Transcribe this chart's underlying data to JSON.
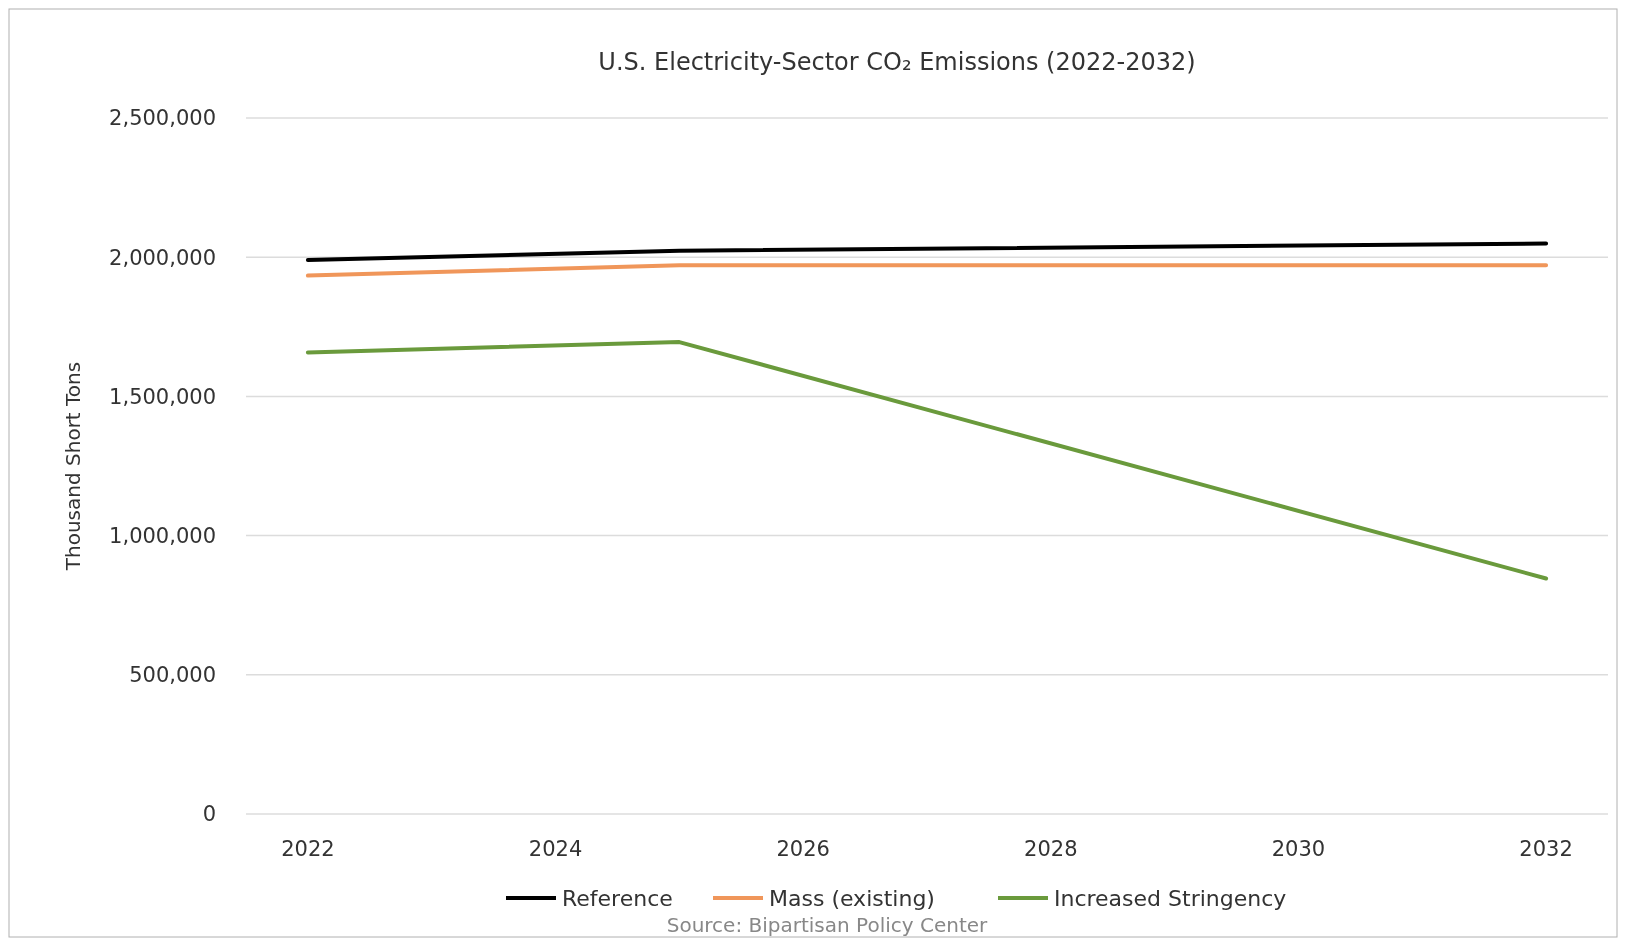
{
  "chart_data": {
    "type": "line",
    "title": "U.S. Electricity-Sector CO₂ Emissions (2022-2032)",
    "ylabel": "Thousand Short Tons",
    "x": [
      2022,
      2025,
      2032
    ],
    "series": [
      {
        "name": "Reference",
        "color": "#000000",
        "values": [
          1990000,
          2023000,
          2049000
        ]
      },
      {
        "name": "Mass (existing)",
        "color": "#f0965a",
        "values": [
          1934000,
          1971000,
          1971000
        ]
      },
      {
        "name": "Increased Stringency",
        "color": "#6a9a3c",
        "values": [
          1658000,
          1695000,
          846000
        ]
      }
    ],
    "xlim": [
      2021.5,
      2032.5
    ],
    "xticks": [
      2022,
      2024,
      2026,
      2028,
      2030,
      2032
    ],
    "ylim": [
      0,
      2500000
    ],
    "yticks": [
      {
        "value": 0,
        "label": "0"
      },
      {
        "value": 500000,
        "label": "500,000"
      },
      {
        "value": 1000000,
        "label": "1,000,000"
      },
      {
        "value": 1500000,
        "label": "1,500,000"
      },
      {
        "value": 2000000,
        "label": "2,000,000"
      },
      {
        "value": 2500000,
        "label": "2,500,000"
      }
    ],
    "grid": "y",
    "legend": "bottom",
    "marker": "none",
    "line_style": "solid",
    "annotations": [
      "Source: Bipartisan Policy Center"
    ]
  }
}
